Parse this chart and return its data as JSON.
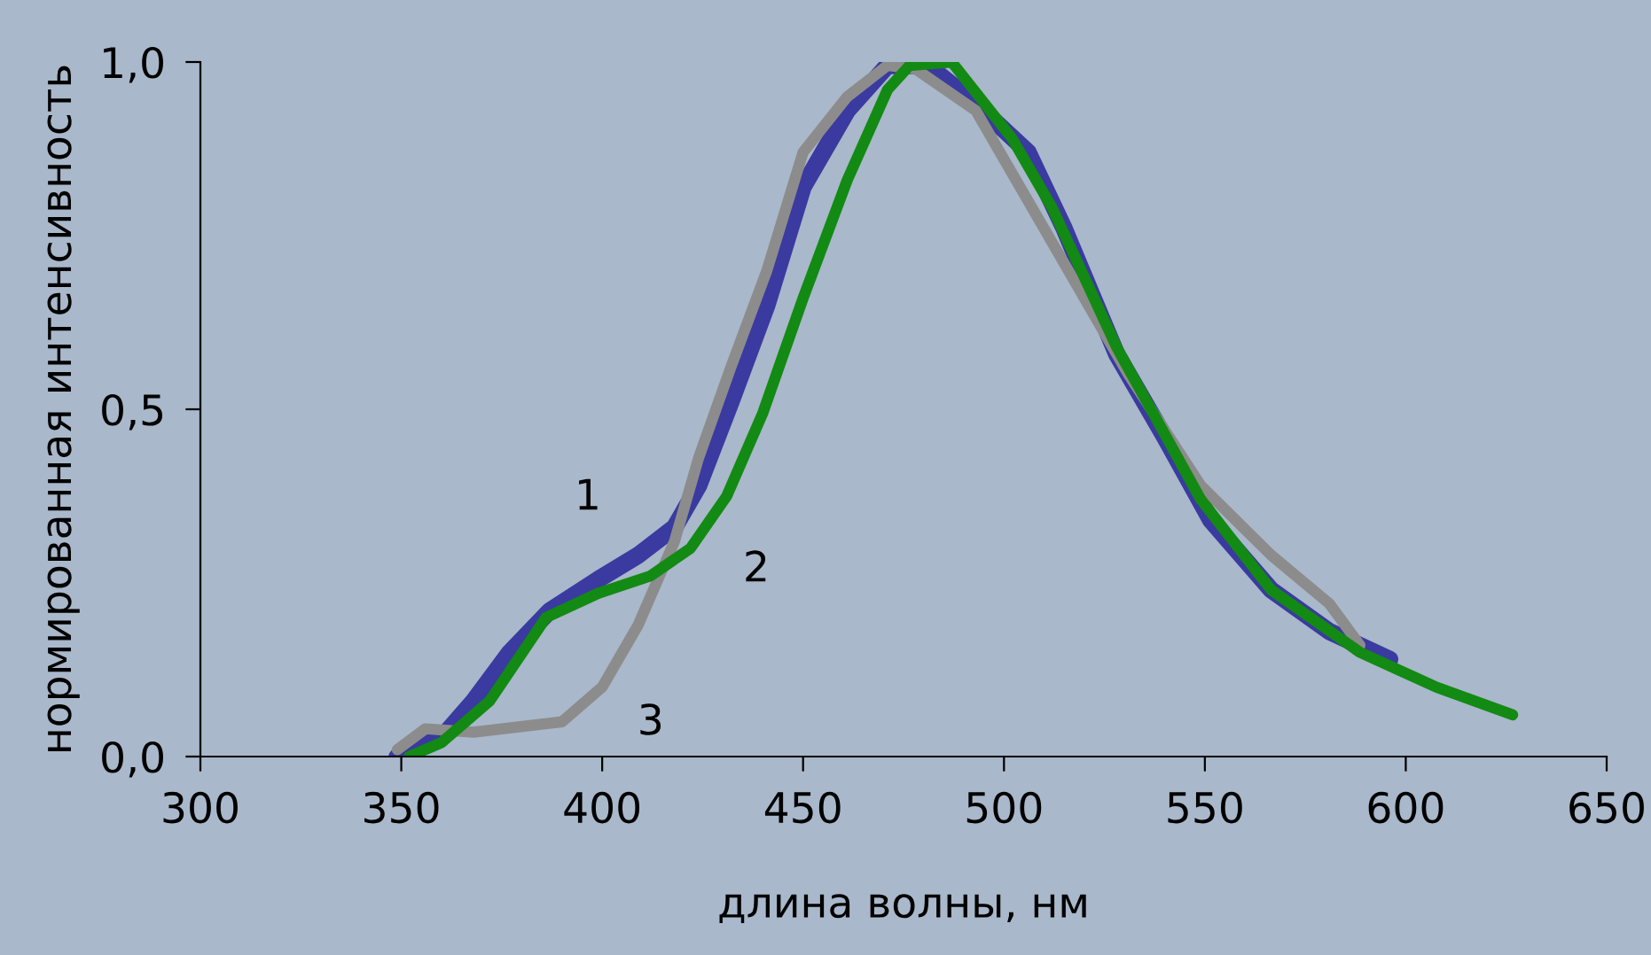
{
  "chart_data": {
    "type": "line",
    "xlabel": "длина волны, нм",
    "ylabel": "нормированная интенсивность",
    "xlim": [
      300,
      650
    ],
    "xticks": [
      300,
      350,
      400,
      450,
      500,
      550,
      600,
      650
    ],
    "ylim": [
      0,
      1
    ],
    "yticks": [
      {
        "value": 0,
        "label": "0,0"
      },
      {
        "value": 0.5,
        "label": "0,5"
      },
      {
        "value": 1,
        "label": "1,0"
      }
    ],
    "grid": false,
    "legend": false,
    "marker": "none",
    "line_style": "solid",
    "series": [
      {
        "name": "1",
        "color": "#3a3aa0",
        "x": [
          349,
          360.5,
          368,
          377,
          387,
          399,
          409,
          418,
          424,
          432,
          441,
          450,
          461,
          471,
          481,
          493,
          506,
          515,
          528,
          540,
          551.5,
          566.5,
          581,
          596
        ],
        "values": [
          0.0,
          0.03,
          0.08,
          0.15,
          0.21,
          0.255,
          0.29,
          0.33,
          0.39,
          0.51,
          0.65,
          0.82,
          0.93,
          0.995,
          0.995,
          0.94,
          0.87,
          0.76,
          0.58,
          0.46,
          0.34,
          0.24,
          0.18,
          0.14
        ]
      },
      {
        "name": "3",
        "color": "#8c8c8c",
        "x": [
          349,
          356,
          368,
          390,
          400,
          409,
          418,
          424,
          432,
          441,
          450,
          461,
          471,
          478,
          493,
          500,
          515,
          531,
          549,
          566.5,
          581,
          588.6
        ],
        "values": [
          0.01,
          0.04,
          0.035,
          0.05,
          0.1,
          0.19,
          0.31,
          0.43,
          0.56,
          0.7,
          0.87,
          0.95,
          0.995,
          0.99,
          0.93,
          0.86,
          0.71,
          0.55,
          0.39,
          0.29,
          0.22,
          0.16
        ]
      },
      {
        "name": "2",
        "color": "#138a13",
        "x": [
          352,
          360,
          372,
          386,
          399,
          412,
          422,
          431,
          440,
          450,
          461,
          471,
          476.5,
          487,
          502,
          512,
          528,
          549,
          566.5,
          588.6,
          607.6,
          626.6
        ],
        "values": [
          0.0,
          0.02,
          0.08,
          0.2,
          0.235,
          0.26,
          0.3,
          0.375,
          0.495,
          0.66,
          0.83,
          0.96,
          0.995,
          1.0,
          0.89,
          0.79,
          0.59,
          0.37,
          0.24,
          0.15,
          0.1,
          0.06
        ]
      }
    ]
  }
}
